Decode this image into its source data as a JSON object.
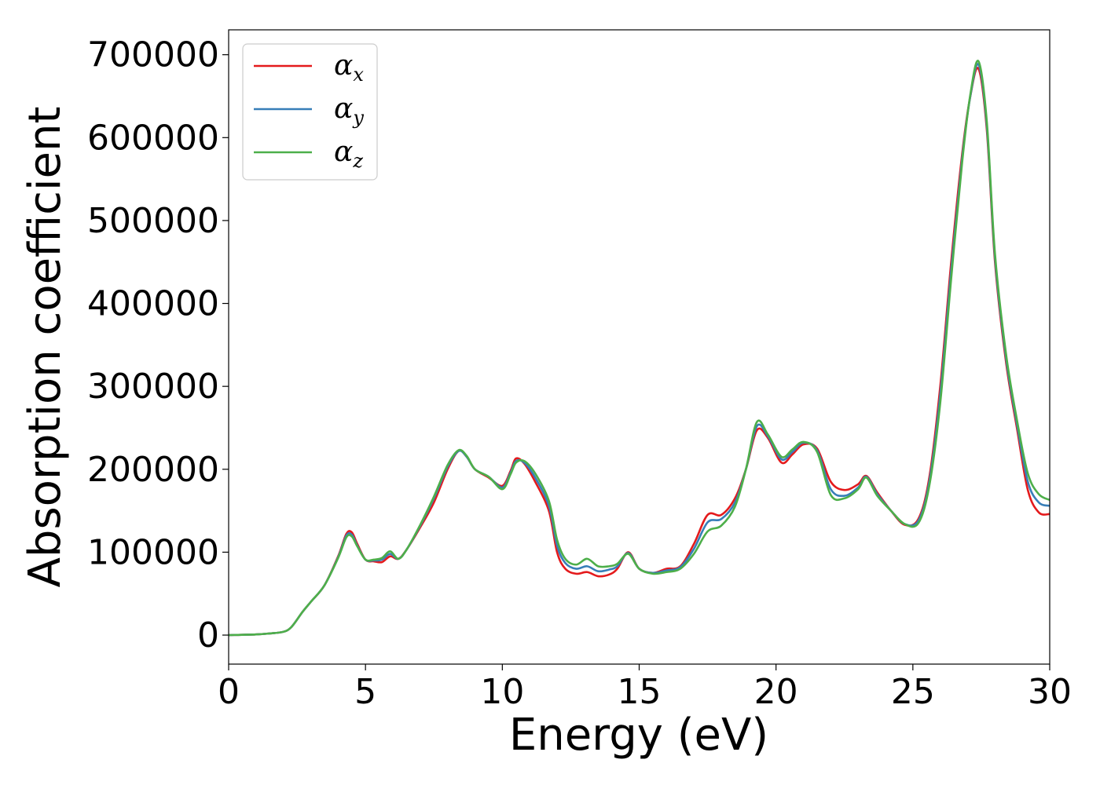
{
  "chart_data": {
    "type": "line",
    "title": "",
    "xlabel": "Energy (eV)",
    "ylabel": "Absorption coefficient",
    "xlim": [
      0,
      30
    ],
    "ylim": [
      -35000,
      730000
    ],
    "xticks": [
      0,
      5,
      10,
      15,
      20,
      25,
      30
    ],
    "yticks": [
      0,
      100000,
      200000,
      300000,
      400000,
      500000,
      600000,
      700000
    ],
    "grid": false,
    "legend": "top-left",
    "series": [
      {
        "name": "α",
        "subscript": "x",
        "color": "#e41a1c",
        "x": [
          0,
          1,
          1.5,
          2,
          2.3,
          2.7,
          3,
          3.5,
          4,
          4.3,
          4.5,
          4.7,
          5,
          5.3,
          5.6,
          5.9,
          6.2,
          6.5,
          7,
          7.5,
          8,
          8.4,
          8.7,
          9,
          9.5,
          10,
          10.3,
          10.5,
          10.8,
          11.2,
          11.7,
          12,
          12.3,
          12.7,
          13.1,
          13.5,
          13.9,
          14.2,
          14.6,
          15,
          15.5,
          16,
          16.5,
          17,
          17.5,
          18,
          18.5,
          18.9,
          19.3,
          19.7,
          20.2,
          20.6,
          21,
          21.5,
          22,
          22.5,
          23,
          23.3,
          23.7,
          24.2,
          24.7,
          25.2,
          25.6,
          26,
          26.4,
          26.8,
          27.1,
          27.4,
          27.7,
          28,
          28.4,
          28.8,
          29.2,
          29.6,
          30
        ],
        "y": [
          0,
          800,
          2000,
          4000,
          10000,
          28000,
          40000,
          60000,
          95000,
          122000,
          124000,
          110000,
          91000,
          89000,
          88000,
          95000,
          92000,
          103000,
          130000,
          160000,
          200000,
          222000,
          215000,
          200000,
          190000,
          180000,
          198000,
          213000,
          207000,
          185000,
          150000,
          100000,
          80000,
          74000,
          76000,
          71000,
          73000,
          80000,
          100000,
          80000,
          75000,
          80000,
          83000,
          110000,
          145000,
          145000,
          165000,
          200000,
          247000,
          238000,
          208000,
          218000,
          230000,
          225000,
          185000,
          175000,
          182000,
          192000,
          172000,
          150000,
          133000,
          140000,
          190000,
          300000,
          450000,
          580000,
          650000,
          683000,
          610000,
          450000,
          330000,
          250000,
          175000,
          148000,
          146000
        ]
      },
      {
        "name": "α",
        "subscript": "y",
        "color": "#377eb8",
        "x": [
          0,
          1,
          1.5,
          2,
          2.3,
          2.7,
          3,
          3.5,
          4,
          4.3,
          4.5,
          4.7,
          5,
          5.3,
          5.6,
          5.9,
          6.2,
          6.5,
          7,
          7.5,
          8,
          8.4,
          8.7,
          9,
          9.5,
          10,
          10.3,
          10.5,
          10.8,
          11.2,
          11.7,
          12,
          12.3,
          12.7,
          13.1,
          13.5,
          13.9,
          14.2,
          14.6,
          15,
          15.5,
          16,
          16.5,
          17,
          17.5,
          18,
          18.5,
          18.9,
          19.3,
          19.7,
          20.2,
          20.6,
          21,
          21.5,
          22,
          22.5,
          23,
          23.3,
          23.7,
          24.2,
          24.7,
          25.2,
          25.6,
          26,
          26.4,
          26.8,
          27.1,
          27.4,
          27.7,
          28,
          28.4,
          28.8,
          29.2,
          29.6,
          30
        ],
        "y": [
          0,
          800,
          2000,
          4000,
          10000,
          28000,
          40000,
          60000,
          94000,
          120000,
          121000,
          108000,
          91000,
          90000,
          91000,
          98000,
          92000,
          103000,
          132000,
          165000,
          203000,
          222000,
          215000,
          200000,
          191000,
          178000,
          196000,
          210000,
          208000,
          190000,
          156000,
          108000,
          87000,
          80000,
          83000,
          77000,
          79000,
          83000,
          99000,
          80000,
          75000,
          78000,
          82000,
          104000,
          136000,
          140000,
          160000,
          200000,
          252000,
          240000,
          212000,
          221000,
          232000,
          223000,
          176000,
          168000,
          178000,
          191000,
          170000,
          150000,
          134000,
          138000,
          185000,
          290000,
          440000,
          575000,
          650000,
          688000,
          615000,
          455000,
          335000,
          255000,
          185000,
          160000,
          156000
        ]
      },
      {
        "name": "α",
        "subscript": "z",
        "color": "#4daf4a",
        "x": [
          0,
          1,
          1.5,
          2,
          2.3,
          2.7,
          3,
          3.5,
          4,
          4.3,
          4.5,
          4.7,
          5,
          5.3,
          5.6,
          5.9,
          6.2,
          6.5,
          7,
          7.5,
          8,
          8.4,
          8.7,
          9,
          9.5,
          10,
          10.3,
          10.5,
          10.8,
          11.2,
          11.7,
          12,
          12.3,
          12.7,
          13.1,
          13.5,
          13.9,
          14.2,
          14.6,
          15,
          15.5,
          16,
          16.5,
          17,
          17.5,
          18,
          18.5,
          18.9,
          19.3,
          19.7,
          20.2,
          20.6,
          21,
          21.5,
          22,
          22.5,
          23,
          23.3,
          23.7,
          24.2,
          24.7,
          25.2,
          25.6,
          26,
          26.4,
          26.8,
          27.1,
          27.4,
          27.7,
          28,
          28.4,
          28.8,
          29.2,
          29.6,
          30
        ],
        "y": [
          0,
          800,
          2000,
          4000,
          10000,
          28000,
          40000,
          60000,
          93000,
          118000,
          119000,
          107000,
          91000,
          91000,
          93000,
          101000,
          92000,
          103000,
          133000,
          167000,
          205000,
          223000,
          216000,
          200000,
          191000,
          176000,
          194000,
          208000,
          210000,
          195000,
          162000,
          115000,
          92000,
          85000,
          92000,
          83000,
          83000,
          86000,
          98000,
          80000,
          74000,
          76000,
          80000,
          98000,
          125000,
          132000,
          155000,
          200000,
          257000,
          242000,
          215000,
          224000,
          233000,
          221000,
          169000,
          165000,
          176000,
          190000,
          168000,
          150000,
          134000,
          135000,
          180000,
          280000,
          430000,
          570000,
          652000,
          692000,
          620000,
          460000,
          340000,
          260000,
          195000,
          170000,
          163000
        ]
      }
    ]
  }
}
